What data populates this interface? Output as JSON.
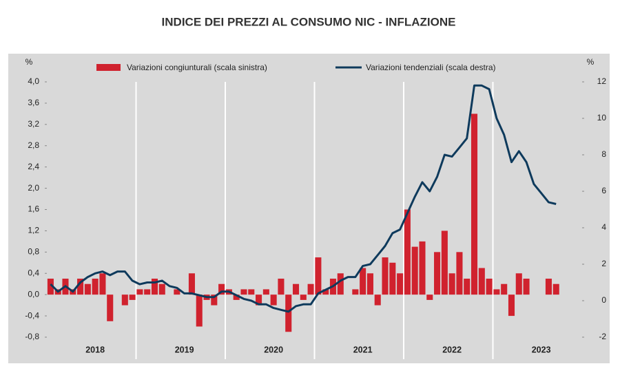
{
  "chart_data": {
    "type": "bar-line",
    "title": "INDICE DEI PREZZI AL CONSUMO NIC - INFLAZIONE",
    "y_unit": "%",
    "y2_unit": "%",
    "categories": [
      null,
      null,
      null,
      null,
      null,
      null,
      "2018",
      null,
      null,
      null,
      null,
      null,
      null,
      null,
      null,
      null,
      null,
      null,
      "2019",
      null,
      null,
      null,
      null,
      null,
      null,
      null,
      null,
      null,
      null,
      null,
      "2020",
      null,
      null,
      null,
      null,
      null,
      null,
      null,
      null,
      null,
      null,
      null,
      "2021",
      null,
      null,
      null,
      null,
      null,
      null,
      null,
      null,
      null,
      null,
      null,
      "2022",
      null,
      null,
      null,
      null,
      null,
      null,
      null,
      null,
      null,
      null,
      null,
      "2023",
      null,
      null,
      null,
      null,
      null
    ],
    "series": [
      {
        "name": "Variazioni congiunturali (scala sinistra)",
        "type": "bar",
        "color": "#d0222e",
        "values": [
          0.3,
          0.1,
          0.3,
          0.1,
          0.3,
          0.2,
          0.3,
          0.4,
          -0.5,
          0.0,
          -0.2,
          -0.1,
          0.1,
          0.1,
          0.3,
          0.2,
          0.0,
          0.1,
          0.0,
          0.4,
          -0.6,
          -0.1,
          -0.2,
          0.2,
          0.1,
          -0.1,
          0.1,
          0.1,
          -0.2,
          0.1,
          -0.2,
          0.3,
          -0.7,
          0.2,
          -0.1,
          0.2,
          0.7,
          0.1,
          0.3,
          0.4,
          0.0,
          0.1,
          0.5,
          0.4,
          -0.2,
          0.7,
          0.6,
          0.4,
          1.6,
          0.9,
          1.0,
          -0.1,
          0.8,
          1.2,
          0.4,
          0.8,
          0.3,
          3.4,
          0.5,
          0.3,
          0.1,
          0.2,
          -0.4,
          0.4,
          0.3,
          0.0,
          0.0,
          0.3,
          0.2,
          null,
          null,
          null
        ]
      },
      {
        "name": "Variazioni tendenziali (scala destra)",
        "type": "line",
        "axis": "y2",
        "color": "#0e3a5c",
        "values": [
          0.9,
          0.5,
          0.8,
          0.5,
          1.0,
          1.3,
          1.5,
          1.6,
          1.4,
          1.6,
          1.6,
          1.1,
          0.9,
          1.0,
          1.0,
          1.1,
          0.8,
          0.7,
          0.4,
          0.4,
          0.3,
          0.2,
          0.2,
          0.5,
          0.5,
          0.3,
          0.1,
          0.0,
          -0.2,
          -0.2,
          -0.4,
          -0.5,
          -0.6,
          -0.3,
          -0.2,
          -0.2,
          0.4,
          0.6,
          0.8,
          1.1,
          1.3,
          1.3,
          1.9,
          2.0,
          2.5,
          3.0,
          3.7,
          3.9,
          4.8,
          5.7,
          6.5,
          6.0,
          6.8,
          8.0,
          7.9,
          8.4,
          8.9,
          11.8,
          11.8,
          11.6,
          10.0,
          9.1,
          7.6,
          8.2,
          7.6,
          6.4,
          5.9,
          5.4,
          5.3,
          null,
          null,
          null
        ]
      }
    ],
    "ylim": [
      -0.8,
      4.0
    ],
    "yticks": [
      {
        "value": -0.8,
        "label": "-0,8"
      },
      {
        "value": -0.4,
        "label": "-0,4"
      },
      {
        "value": 0,
        "label": "0,0"
      },
      {
        "value": 0.4,
        "label": "0,4"
      },
      {
        "value": 0.8,
        "label": "0,8"
      },
      {
        "value": 1.2,
        "label": "1,2"
      },
      {
        "value": 1.6,
        "label": "1,6"
      },
      {
        "value": 2.0,
        "label": "2,0"
      },
      {
        "value": 2.4,
        "label": "2,4"
      },
      {
        "value": 2.8,
        "label": "2,8"
      },
      {
        "value": 3.2,
        "label": "3,2"
      },
      {
        "value": 3.6,
        "label": "3,6"
      },
      {
        "value": 4.0,
        "label": "4,0"
      }
    ],
    "y2lim": [
      -2,
      12
    ],
    "y2ticks": [
      -2,
      0,
      2,
      4,
      6,
      8,
      10,
      12
    ]
  }
}
